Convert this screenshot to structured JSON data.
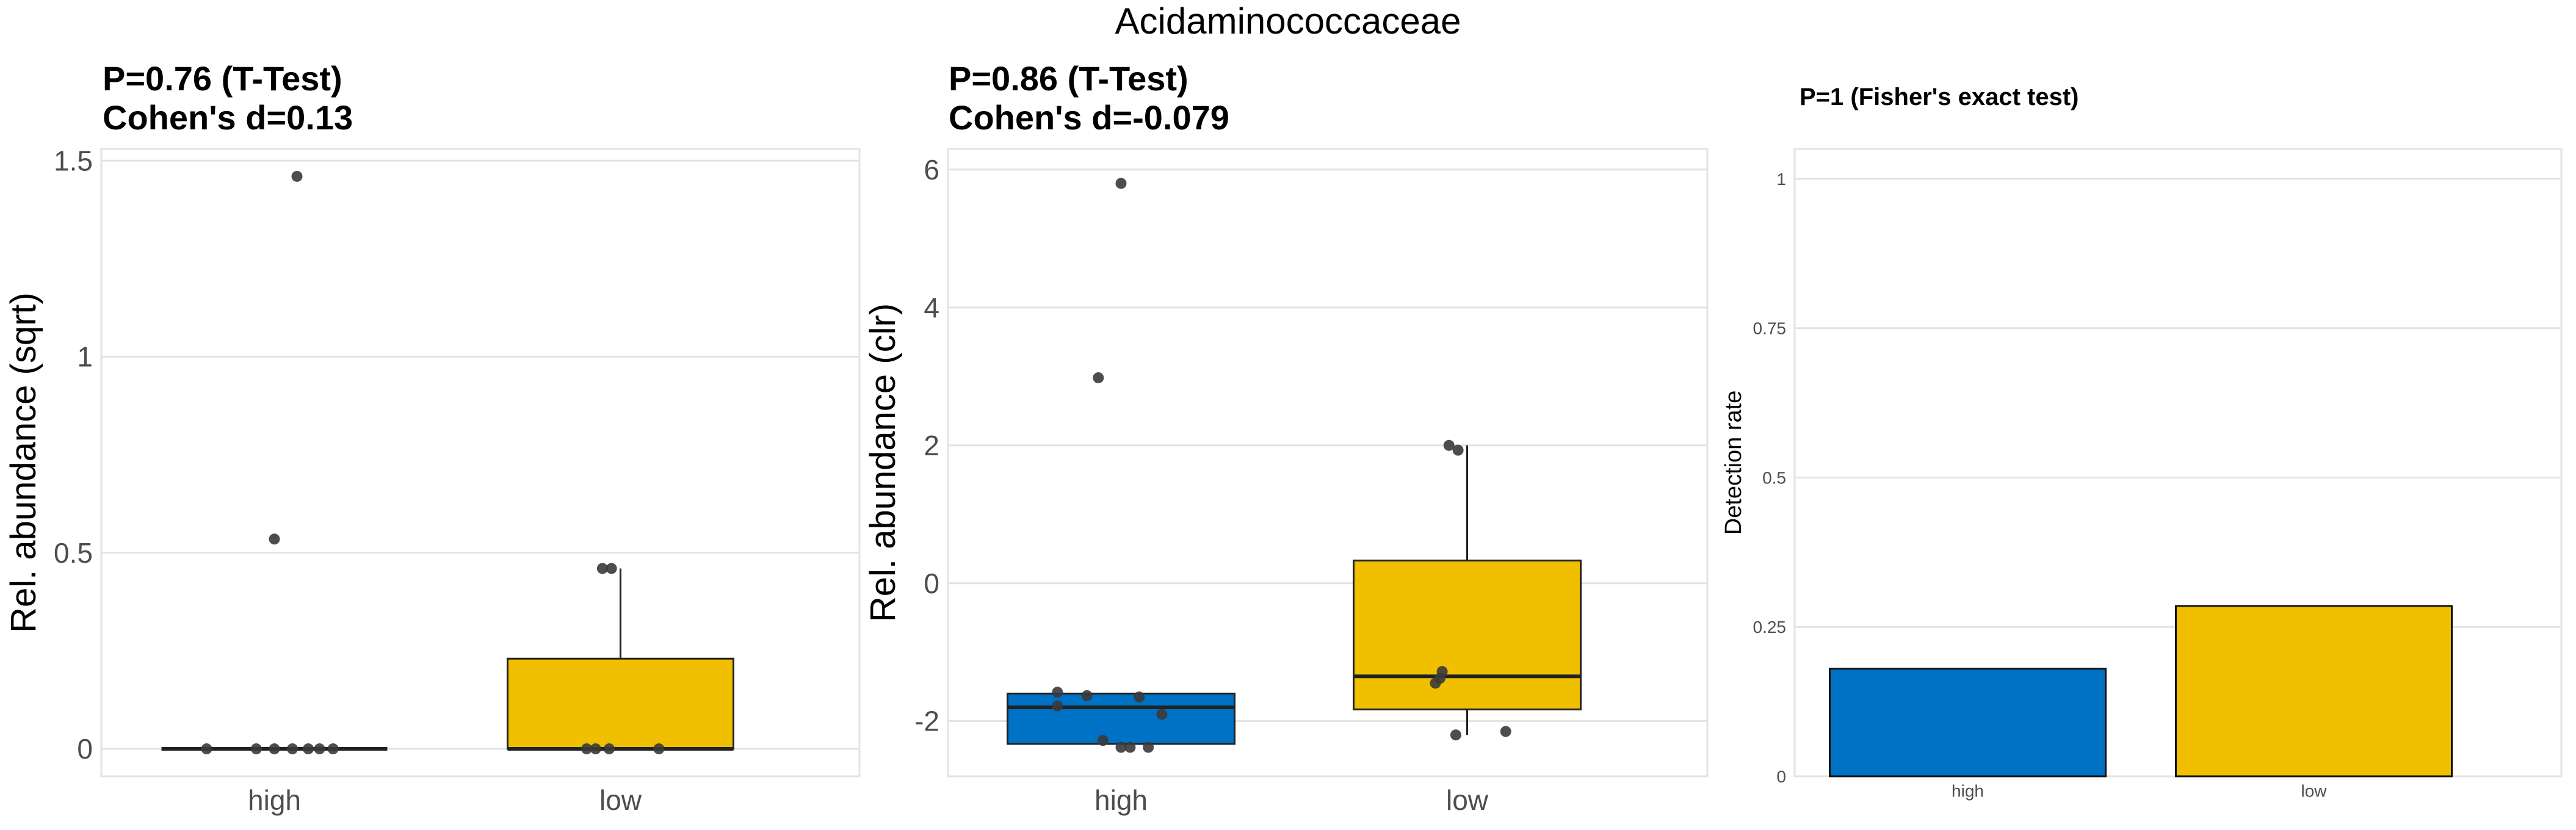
{
  "figure": {
    "title": "Acidaminococcaceae"
  },
  "colors": {
    "high": "#0072C6",
    "low": "#F0C000",
    "grid": "#E3E3E3",
    "points": "#3A3A3A"
  },
  "chart_data": [
    {
      "type": "box",
      "title_line1": "P=0.76 (T-Test)",
      "title_line2": "Cohen's d=0.13",
      "xlabel": "",
      "ylabel": "Rel. abundance (sqrt)",
      "categories": [
        "high",
        "low"
      ],
      "yticks": [
        0,
        0.5,
        1,
        1.5
      ],
      "ytick_labels": [
        "0",
        "0.5",
        "1",
        "1.5"
      ],
      "ylim": [
        -0.07,
        1.53
      ],
      "boxes": [
        {
          "group": "high",
          "q1": 0,
          "median": 0,
          "q3": 0,
          "whisker_low": 0,
          "whisker_high": 0
        },
        {
          "group": "low",
          "q1": 0,
          "median": 0,
          "q3": 0.23,
          "whisker_low": 0,
          "whisker_high": 0.46
        }
      ],
      "points": [
        {
          "group": "high",
          "jitter": 0.1,
          "y": 1.46
        },
        {
          "group": "high",
          "jitter": 0.0,
          "y": 0.535
        },
        {
          "group": "high",
          "jitter": -0.3,
          "y": 0
        },
        {
          "group": "high",
          "jitter": -0.08,
          "y": 0
        },
        {
          "group": "high",
          "jitter": 0.0,
          "y": 0
        },
        {
          "group": "high",
          "jitter": 0.08,
          "y": 0
        },
        {
          "group": "high",
          "jitter": 0.15,
          "y": 0
        },
        {
          "group": "high",
          "jitter": 0.2,
          "y": 0
        },
        {
          "group": "high",
          "jitter": 0.26,
          "y": 0
        },
        {
          "group": "low",
          "jitter": -0.08,
          "y": 0.46
        },
        {
          "group": "low",
          "jitter": -0.04,
          "y": 0.46
        },
        {
          "group": "low",
          "jitter": -0.15,
          "y": 0
        },
        {
          "group": "low",
          "jitter": -0.11,
          "y": 0
        },
        {
          "group": "low",
          "jitter": -0.05,
          "y": 0
        },
        {
          "group": "low",
          "jitter": 0.17,
          "y": 0
        }
      ]
    },
    {
      "type": "box",
      "title_line1": "P=0.86 (T-Test)",
      "title_line2": "Cohen's d=-0.079",
      "xlabel": "",
      "ylabel": "Rel. abundance (clr)",
      "categories": [
        "high",
        "low"
      ],
      "yticks": [
        -2,
        0,
        2,
        4,
        6
      ],
      "ytick_labels": [
        "-2",
        "0",
        "2",
        "4",
        "6"
      ],
      "ylim": [
        -2.8,
        6.3
      ],
      "boxes": [
        {
          "group": "high",
          "q1": -2.33,
          "median": -1.8,
          "q3": -1.6,
          "whisker_low": -2.33,
          "whisker_high": -1.6
        },
        {
          "group": "low",
          "q1": -1.83,
          "median": -1.35,
          "q3": 0.33,
          "whisker_low": -2.2,
          "whisker_high": 2.0
        }
      ],
      "points": [
        {
          "group": "high",
          "jitter": 0.0,
          "y": 5.8
        },
        {
          "group": "high",
          "jitter": -0.1,
          "y": 2.98
        },
        {
          "group": "high",
          "jitter": -0.28,
          "y": -1.58
        },
        {
          "group": "high",
          "jitter": -0.15,
          "y": -1.63
        },
        {
          "group": "high",
          "jitter": 0.08,
          "y": -1.65
        },
        {
          "group": "high",
          "jitter": -0.28,
          "y": -1.78
        },
        {
          "group": "high",
          "jitter": 0.18,
          "y": -1.9
        },
        {
          "group": "high",
          "jitter": -0.08,
          "y": -2.28
        },
        {
          "group": "high",
          "jitter": 0.0,
          "y": -2.38
        },
        {
          "group": "high",
          "jitter": 0.04,
          "y": -2.38
        },
        {
          "group": "high",
          "jitter": 0.12,
          "y": -2.38
        },
        {
          "group": "low",
          "jitter": -0.04,
          "y": 1.93
        },
        {
          "group": "low",
          "jitter": -0.08,
          "y": 2.0
        },
        {
          "group": "low",
          "jitter": -0.11,
          "y": -1.28
        },
        {
          "group": "low",
          "jitter": -0.12,
          "y": -1.38
        },
        {
          "group": "low",
          "jitter": -0.14,
          "y": -1.45
        },
        {
          "group": "low",
          "jitter": -0.05,
          "y": -2.2
        },
        {
          "group": "low",
          "jitter": 0.17,
          "y": -2.15
        }
      ]
    },
    {
      "type": "bar",
      "title_line1": "P=1 (Fisher's exact test)",
      "xlabel": "",
      "ylabel": "Detection rate",
      "categories": [
        "high",
        "low"
      ],
      "values": [
        0.18,
        0.285
      ],
      "yticks": [
        0,
        0.25,
        0.5,
        0.75,
        1
      ],
      "ytick_labels": [
        "0",
        "0.25",
        "0.5",
        "0.75",
        "1"
      ],
      "ylim": [
        0,
        1.05
      ]
    }
  ]
}
